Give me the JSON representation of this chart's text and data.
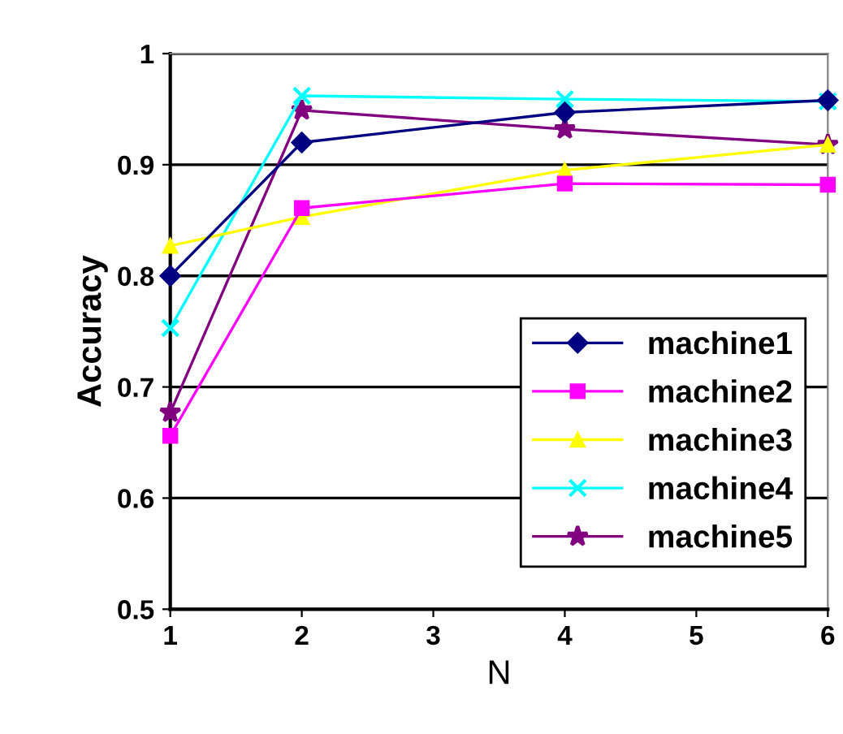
{
  "chart_data": {
    "type": "line",
    "xlabel": "N",
    "ylabel": "Accuracy",
    "xlim": [
      1,
      6
    ],
    "xticks": [
      1,
      2,
      3,
      4,
      5,
      6
    ],
    "ylim": [
      0.5,
      1
    ],
    "yticks": [
      0.5,
      0.6,
      0.7,
      0.8,
      0.9,
      1
    ],
    "grid": "y",
    "legend": "right",
    "series": [
      {
        "name": "machine1",
        "color": "#000080",
        "marker": "diamond",
        "x": [
          1,
          2,
          4,
          6
        ],
        "values": [
          0.8,
          0.92,
          0.947,
          0.958
        ]
      },
      {
        "name": "machine2",
        "color": "#ff00ff",
        "marker": "square",
        "x": [
          1,
          2,
          4,
          6
        ],
        "values": [
          0.656,
          0.861,
          0.883,
          0.882
        ]
      },
      {
        "name": "machine3",
        "color": "#ffff00",
        "marker": "triangle",
        "x": [
          1,
          2,
          4,
          6
        ],
        "values": [
          0.827,
          0.853,
          0.895,
          0.918
        ]
      },
      {
        "name": "machine4",
        "color": "#00ffff",
        "marker": "cross",
        "x": [
          1,
          2,
          4,
          6
        ],
        "values": [
          0.753,
          0.962,
          0.959,
          0.957
        ]
      },
      {
        "name": "machine5",
        "color": "#800080",
        "marker": "star",
        "x": [
          1,
          2,
          4,
          6
        ],
        "values": [
          0.677,
          0.949,
          0.932,
          0.918
        ]
      }
    ]
  }
}
